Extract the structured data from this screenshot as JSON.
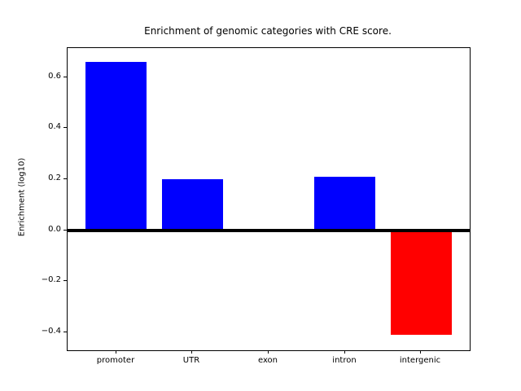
{
  "figure": {
    "background": "#ffffff"
  },
  "chart_data": {
    "type": "bar",
    "title": "Enrichment of genomic categories with CRE score.",
    "xlabel": "",
    "ylabel": "Enrichment (log10)",
    "categories": [
      "promoter",
      "UTR",
      "exon",
      "intron",
      "intergenic"
    ],
    "values": [
      0.66,
      0.2,
      0.0,
      0.21,
      -0.41
    ],
    "bar_colors": [
      "#0000ff",
      "#0000ff",
      "#0000ff",
      "#0000ff",
      "#ff0000"
    ],
    "positive_color": "#0000ff",
    "negative_color": "#ff0000",
    "ylim": [
      -0.47,
      0.714
    ],
    "ytick_values": [
      0.6,
      0.4,
      0.2,
      0.0,
      -0.2,
      -0.4
    ],
    "ytick_labels": [
      "0.6",
      "0.4",
      "0.2",
      "0.0",
      "−0.2",
      "−0.4"
    ],
    "zero_line": true,
    "grid": false,
    "legend": null,
    "axis_color": "#000000",
    "text_color": "#000000",
    "background": "#ffffff"
  }
}
